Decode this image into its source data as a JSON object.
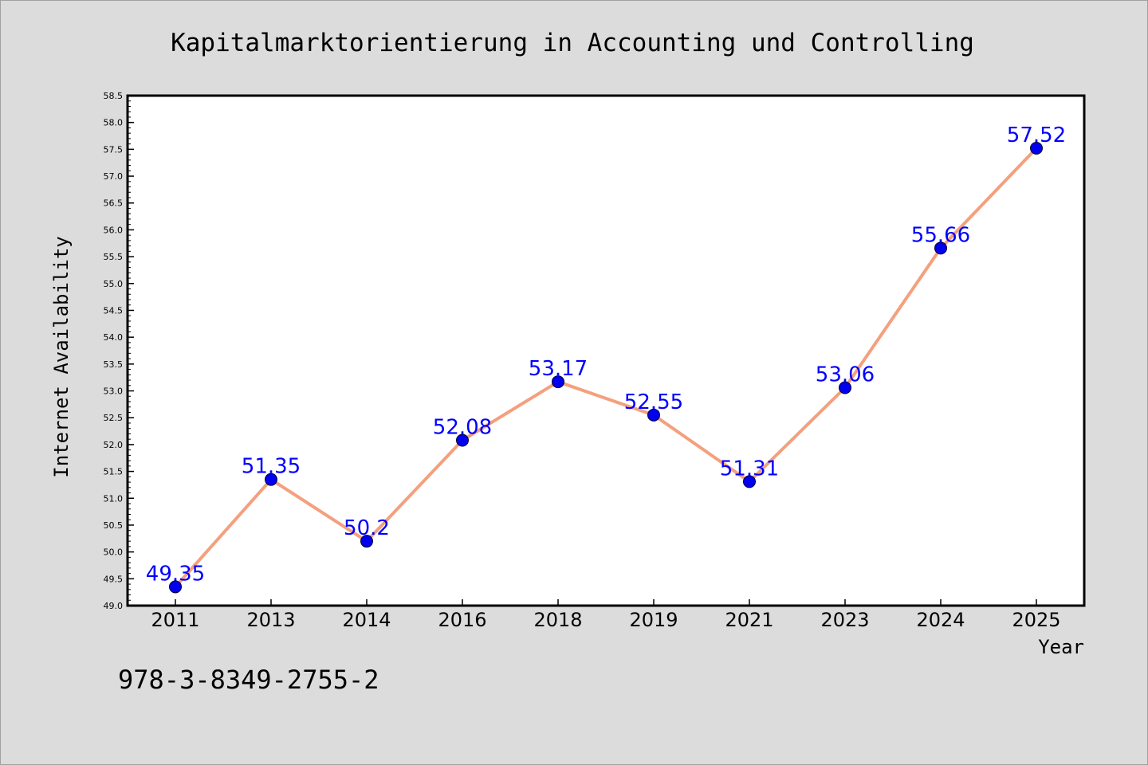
{
  "chart_data": {
    "type": "line",
    "title": "Kapitalmarktorientierung in Accounting und Controlling",
    "xlabel": "Year",
    "ylabel": "Internet Availability",
    "categories": [
      "2011",
      "2013",
      "2014",
      "2016",
      "2018",
      "2019",
      "2021",
      "2023",
      "2024",
      "2025"
    ],
    "series": [
      {
        "values": [
          49.35,
          51.35,
          50.2,
          52.08,
          53.17,
          52.55,
          51.31,
          53.06,
          55.66,
          57.52
        ],
        "line_color": "#f4a07e",
        "marker_color": "#0000ee"
      }
    ],
    "data_labels": [
      "49.35",
      "51.35",
      "50.2",
      "52.08",
      "53.17",
      "52.55",
      "51.31",
      "53.06",
      "55.66",
      "57.52"
    ],
    "ylim": [
      49.0,
      58.5
    ],
    "yticks": [
      "49.0",
      "49.5",
      "50.0",
      "50.5",
      "51.0",
      "51.5",
      "52.0",
      "52.5",
      "53.0",
      "53.5",
      "54.0",
      "54.5",
      "55.0",
      "55.5",
      "56.0",
      "56.5",
      "57.0",
      "57.5",
      "58.0",
      "58.5"
    ],
    "grid": false,
    "legend": "none",
    "label_color": "#0000ff",
    "background": "#dcdcdc",
    "plot_background": "#ffffff"
  },
  "footer_text": "978-3-8349-2755-2"
}
